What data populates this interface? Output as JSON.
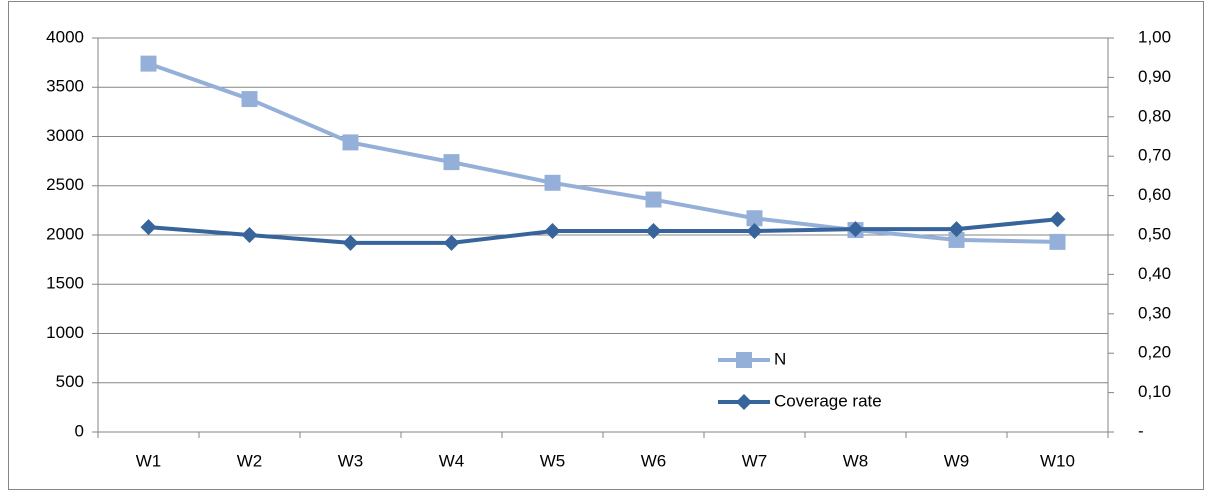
{
  "chart_data": {
    "type": "line",
    "categories": [
      "W1",
      "W2",
      "W3",
      "W4",
      "W5",
      "W6",
      "W7",
      "W8",
      "W9",
      "W10"
    ],
    "series": [
      {
        "name": "N",
        "color": "#95b0d8",
        "marker": "square",
        "values": [
          3740,
          3380,
          2940,
          2740,
          2530,
          2360,
          2170,
          2050,
          1950,
          1930
        ]
      },
      {
        "name": "Coverage rate",
        "color": "#37649a",
        "marker": "diamond",
        "axis": "y2",
        "values": [
          0.52,
          0.5,
          0.48,
          0.48,
          0.51,
          0.51,
          0.51,
          0.515,
          0.515,
          0.54
        ]
      }
    ],
    "ylim": [
      0,
      4000
    ],
    "yticks": [
      0,
      500,
      1000,
      1500,
      2000,
      2500,
      3000,
      3500,
      4000
    ],
    "y2lim": [
      0,
      1
    ],
    "y2ticks": [
      {
        "value": 0,
        "label": "-"
      },
      {
        "value": 0.1,
        "label": "0,10"
      },
      {
        "value": 0.2,
        "label": "0,20"
      },
      {
        "value": 0.3,
        "label": "0,30"
      },
      {
        "value": 0.4,
        "label": "0,40"
      },
      {
        "value": 0.5,
        "label": "0,50"
      },
      {
        "value": 0.6,
        "label": "0,60"
      },
      {
        "value": 0.7,
        "label": "0,70"
      },
      {
        "value": 0.8,
        "label": "0,80"
      },
      {
        "value": 0.9,
        "label": "0,90"
      },
      {
        "value": 1,
        "label": "1,00"
      }
    ],
    "grid": true,
    "legend": "lower right"
  }
}
